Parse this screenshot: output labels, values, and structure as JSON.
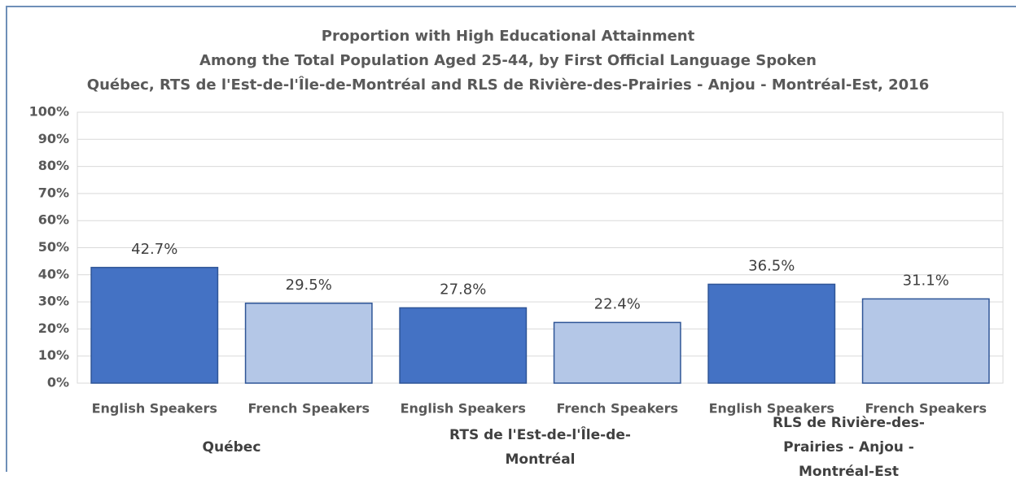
{
  "chart_data": {
    "type": "bar",
    "title": [
      "Proportion with High Educational Attainment",
      "Among the Total Population Aged 25-44, by First Official Language Spoken",
      "Québec, RTS de l'Est-de-l'Île-de-Montréal and RLS de Rivière-des-Prairies - Anjou - Montréal-Est, 2016"
    ],
    "categories": [
      "English Speakers",
      "French Speakers",
      "English Speakers",
      "French Speakers",
      "English Speakers",
      "French Speakers"
    ],
    "groups": [
      "Québec",
      "RTS de l'Est-de-l'Île-de-Montréal",
      "RLS de Rivière-des-Prairies - Anjou - Montréal-Est"
    ],
    "values": [
      42.7,
      29.5,
      27.8,
      22.4,
      36.5,
      31.1
    ],
    "value_labels": [
      "42.7%",
      "29.5%",
      "27.8%",
      "22.4%",
      "36.5%",
      "31.1%"
    ],
    "colors": [
      "#4472c4",
      "#b4c7e7",
      "#4472c4",
      "#b4c7e7",
      "#4472c4",
      "#b4c7e7"
    ],
    "ylim": [
      0,
      100
    ],
    "yticks": [
      {
        "value": 0,
        "label": "0%"
      },
      {
        "value": 10,
        "label": "10%"
      },
      {
        "value": 20,
        "label": "20%"
      },
      {
        "value": 30,
        "label": "30%"
      },
      {
        "value": 40,
        "label": "40%"
      },
      {
        "value": 50,
        "label": "50%"
      },
      {
        "value": 60,
        "label": "60%"
      },
      {
        "value": 70,
        "label": "70%"
      },
      {
        "value": 80,
        "label": "80%"
      },
      {
        "value": 90,
        "label": "90%"
      },
      {
        "value": 100,
        "label": "100%"
      }
    ],
    "grid": true
  }
}
